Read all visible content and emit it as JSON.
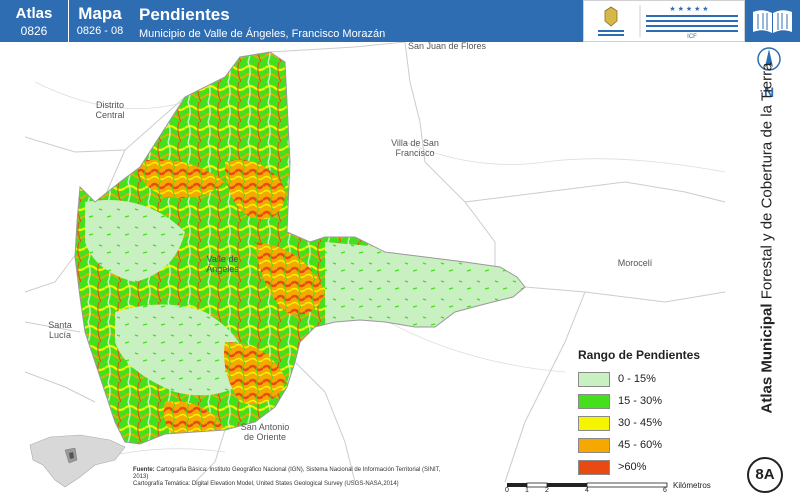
{
  "header": {
    "atlas_label": "Atlas",
    "atlas_code": "0826",
    "mapa_label": "Mapa",
    "mapa_code": "0826 - 08",
    "title": "Pendientes",
    "subtitle": "Municipio de Valle de Ángeles, Francisco Morazán",
    "logo_left_text": "GOBIERNO DE LA REPÚBLICA DE HONDURAS",
    "logo_right_text": "INSTITUTO NACIONAL DE CONSERVACIÓN Y DESARROLLO FORESTAL, ÁREAS PROTEGIDAS Y VIDA SILVESTRE"
  },
  "map_labels": {
    "san_juan": "San Juan de Flores",
    "distrito_central": "Distrito\nCentral",
    "villa_san_francisco": "Villa de San\nFrancisco",
    "valle_de_angeles": "Valle de\nÁngeles",
    "moroceli": "Morocelí",
    "santa_lucia": "Santa\nLucía",
    "san_antonio": "San Antonio\nde Oriente"
  },
  "sidebar": {
    "north": "N",
    "vertical_title_bold": "Atlas Municipal",
    "vertical_title_rest": " Forestal y de Cobertura de la Tierra",
    "badge": "8A"
  },
  "legend": {
    "title": "Rango de Pendientes",
    "items": [
      {
        "label": "0 - 15%",
        "color": "#c8f0c0"
      },
      {
        "label": "15 - 30%",
        "color": "#44e01c"
      },
      {
        "label": "30 - 45%",
        "color": "#f5f500"
      },
      {
        "label": "45 - 60%",
        "color": "#f5a800"
      },
      {
        "label": ">60%",
        "color": "#e84a12"
      }
    ]
  },
  "source": {
    "label": "Fuente:",
    "line1": "Cartografía Básica: Instituto Geográfico Nacional (IGN), Sistema Nacional de Información Territorial (SINIT, 2013)",
    "line2": "Cartografía Temática: Digital Elevation Model, United States Geological Survey (USGS-NASA,2014)"
  },
  "scale": {
    "ticks": [
      "0",
      "1",
      "2",
      "4",
      "6"
    ],
    "unit": "Kilómetros"
  },
  "colors": {
    "header_blue": "#2f6db3",
    "slope_0_15": "#c8f0c0",
    "slope_15_30": "#44e01c",
    "slope_30_45": "#f5f500",
    "slope_45_60": "#f5a800",
    "slope_60": "#e84a12"
  }
}
